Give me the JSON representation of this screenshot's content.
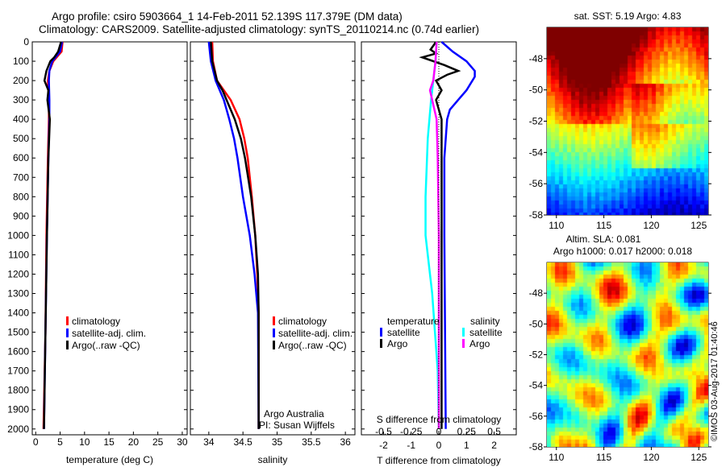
{
  "header": {
    "line1": "Argo profile: csiro 5903664_1 14-Feb-2011 52.139S 117.379E (DM data)",
    "line2": "Climatology: CARS2009. Satellite-adjusted climatology: synTS_20110214.nc (0.74d earlier)"
  },
  "colors": {
    "climatology": "#ff0000",
    "satellite": "#0000ff",
    "argo": "#000000",
    "s_satellite": "#00ffff",
    "s_argo": "#ff00ff"
  },
  "chart_data": [
    {
      "type": "line",
      "name": "temperature",
      "xlabel": "temperature (deg C)",
      "xlim": [
        -0.7,
        31
      ],
      "ylim": [
        0,
        2030
      ],
      "yticks": [
        0,
        100,
        200,
        300,
        400,
        500,
        600,
        700,
        800,
        900,
        1000,
        1100,
        1200,
        1300,
        1400,
        1500,
        1600,
        1700,
        1800,
        1900,
        2000
      ],
      "xticks": [
        0,
        5,
        10,
        15,
        20,
        25,
        30
      ],
      "legend": [
        "climatology",
        "satellite-adj. clim.",
        "Argo(..raw -QC)"
      ],
      "series": [
        {
          "name": "climatology",
          "color": "#ff0000",
          "depth": [
            0,
            50,
            100,
            150,
            200,
            300,
            400,
            600,
            1000,
            1500,
            2000
          ],
          "values": [
            5.5,
            5.3,
            3.6,
            2.8,
            2.5,
            2.7,
            2.7,
            2.5,
            2.2,
            2.0,
            1.6
          ]
        },
        {
          "name": "satellite-adj. clim.",
          "color": "#0000ff",
          "depth": [
            0,
            50,
            100,
            150,
            200,
            300,
            400,
            600,
            1000,
            1500,
            2000
          ],
          "values": [
            5.4,
            5.0,
            3.4,
            2.8,
            2.7,
            2.8,
            2.8,
            2.6,
            2.3,
            2.0,
            1.7
          ]
        },
        {
          "name": "Argo(..raw -QC)",
          "color": "#000000",
          "depth": [
            0,
            50,
            80,
            100,
            150,
            200,
            250,
            300,
            400,
            600,
            1000,
            1500,
            2000
          ],
          "values": [
            5.2,
            4.6,
            3.8,
            3.0,
            2.2,
            1.8,
            2.6,
            2.4,
            2.9,
            2.6,
            2.3,
            2.0,
            1.7
          ]
        }
      ]
    },
    {
      "type": "line",
      "name": "salinity",
      "xlabel": "salinity",
      "xlim": [
        33.73,
        36.14
      ],
      "ylim": [
        0,
        2030
      ],
      "xticks": [
        34,
        34.5,
        35,
        35.5,
        36
      ],
      "legend": [
        "climatology",
        "satellite-adj. clim.",
        "Argo(..raw -QC)"
      ],
      "annotation": [
        "Argo Australia",
        "PI: Susan Wijffels"
      ],
      "series": [
        {
          "name": "climatology",
          "color": "#ff0000",
          "depth": [
            0,
            100,
            200,
            300,
            400,
            500,
            600,
            800,
            1000,
            1200,
            1400,
            2000
          ],
          "values": [
            34.05,
            34.06,
            34.12,
            34.32,
            34.45,
            34.52,
            34.57,
            34.63,
            34.68,
            34.71,
            34.73,
            34.73
          ]
        },
        {
          "name": "satellite-adj. clim.",
          "color": "#0000ff",
          "depth": [
            0,
            100,
            200,
            300,
            400,
            500,
            600,
            800,
            1000,
            1200,
            1400,
            2000
          ],
          "values": [
            34.0,
            34.03,
            34.1,
            34.22,
            34.3,
            34.37,
            34.42,
            34.5,
            34.6,
            34.67,
            34.72,
            34.73
          ]
        },
        {
          "name": "Argo(..raw -QC)",
          "color": "#000000",
          "depth": [
            0,
            100,
            200,
            250,
            300,
            400,
            500,
            600,
            800,
            1000,
            1200,
            1400,
            2000
          ],
          "values": [
            34.03,
            34.05,
            34.12,
            34.2,
            34.26,
            34.38,
            34.47,
            34.53,
            34.62,
            34.68,
            34.72,
            34.73,
            34.73
          ]
        }
      ]
    },
    {
      "type": "line",
      "name": "difference",
      "xlabel": "T difference from climatology",
      "x2label": "S difference from climatology",
      "xlim": [
        -2.8,
        2.8
      ],
      "ylim": [
        0,
        2030
      ],
      "xticks": [
        -2,
        -1,
        0,
        1,
        2
      ],
      "x2ticks": [
        "-0.5",
        "-0.25",
        "0",
        "0.25",
        "0.5"
      ],
      "legend_t_title": "temperature",
      "legend_s_title": "salinity",
      "legend": [
        "satellite",
        "Argo",
        "satellite",
        "Argo"
      ],
      "series": [
        {
          "name": "T satellite",
          "color": "#0000ff",
          "depth": [
            0,
            50,
            100,
            150,
            180,
            250,
            300,
            350,
            400,
            600,
            1000,
            2000
          ],
          "values": [
            0.1,
            0.5,
            1.0,
            1.3,
            1.3,
            1.0,
            0.7,
            0.4,
            0.3,
            0.2,
            0.2,
            0.25
          ]
        },
        {
          "name": "T Argo",
          "color": "#000000",
          "depth": [
            0,
            40,
            60,
            80,
            120,
            150,
            170,
            200,
            250,
            300,
            400,
            1000,
            2000
          ],
          "values": [
            -0.1,
            -0.3,
            -0.1,
            -0.6,
            0.2,
            0.7,
            0.3,
            -0.1,
            0.1,
            -0.1,
            0.1,
            0.1,
            0.1
          ]
        },
        {
          "name": "S satellite",
          "color": "#00ffff",
          "depth": [
            0,
            100,
            200,
            300,
            500,
            800,
            1000,
            1300,
            1700,
            2000
          ],
          "values": [
            -0.02,
            -0.03,
            -0.05,
            -0.07,
            -0.1,
            -0.12,
            -0.12,
            -0.06,
            -0.01,
            0.0
          ]
        },
        {
          "name": "S Argo",
          "color": "#ff00ff",
          "depth": [
            0,
            100,
            200,
            250,
            300,
            400,
            600,
            1000,
            2000
          ],
          "values": [
            -0.02,
            -0.03,
            -0.05,
            -0.08,
            -0.06,
            -0.02,
            -0.01,
            0.0,
            0.0
          ]
        }
      ]
    },
    {
      "type": "heatmap",
      "name": "sst-map",
      "title": "sat. SST: 5.19 Argo: 4.83",
      "xlim": [
        109,
        126
      ],
      "ylim": [
        -46,
        -58
      ],
      "xticks": [
        110,
        115,
        120,
        125
      ],
      "yticks": [
        -48,
        -50,
        -52,
        -54,
        -56,
        -58
      ],
      "marker": [
        117.379,
        -52.139
      ]
    },
    {
      "type": "heatmap",
      "name": "sla-map",
      "title": "Altim. SLA: 0.081",
      "subtitle": "Argo h1000: 0.017 h2000: 0.018",
      "xlim": [
        109,
        126
      ],
      "ylim": [
        -46,
        -58
      ],
      "xticks": [
        110,
        115,
        120,
        125
      ],
      "yticks": [
        -48,
        -50,
        -52,
        -54,
        -56,
        -58
      ],
      "marker": [
        117.379,
        -52.139
      ]
    }
  ],
  "footer": {
    "stamp": "©IMOS 03-Aug-2017 01:40:46"
  }
}
